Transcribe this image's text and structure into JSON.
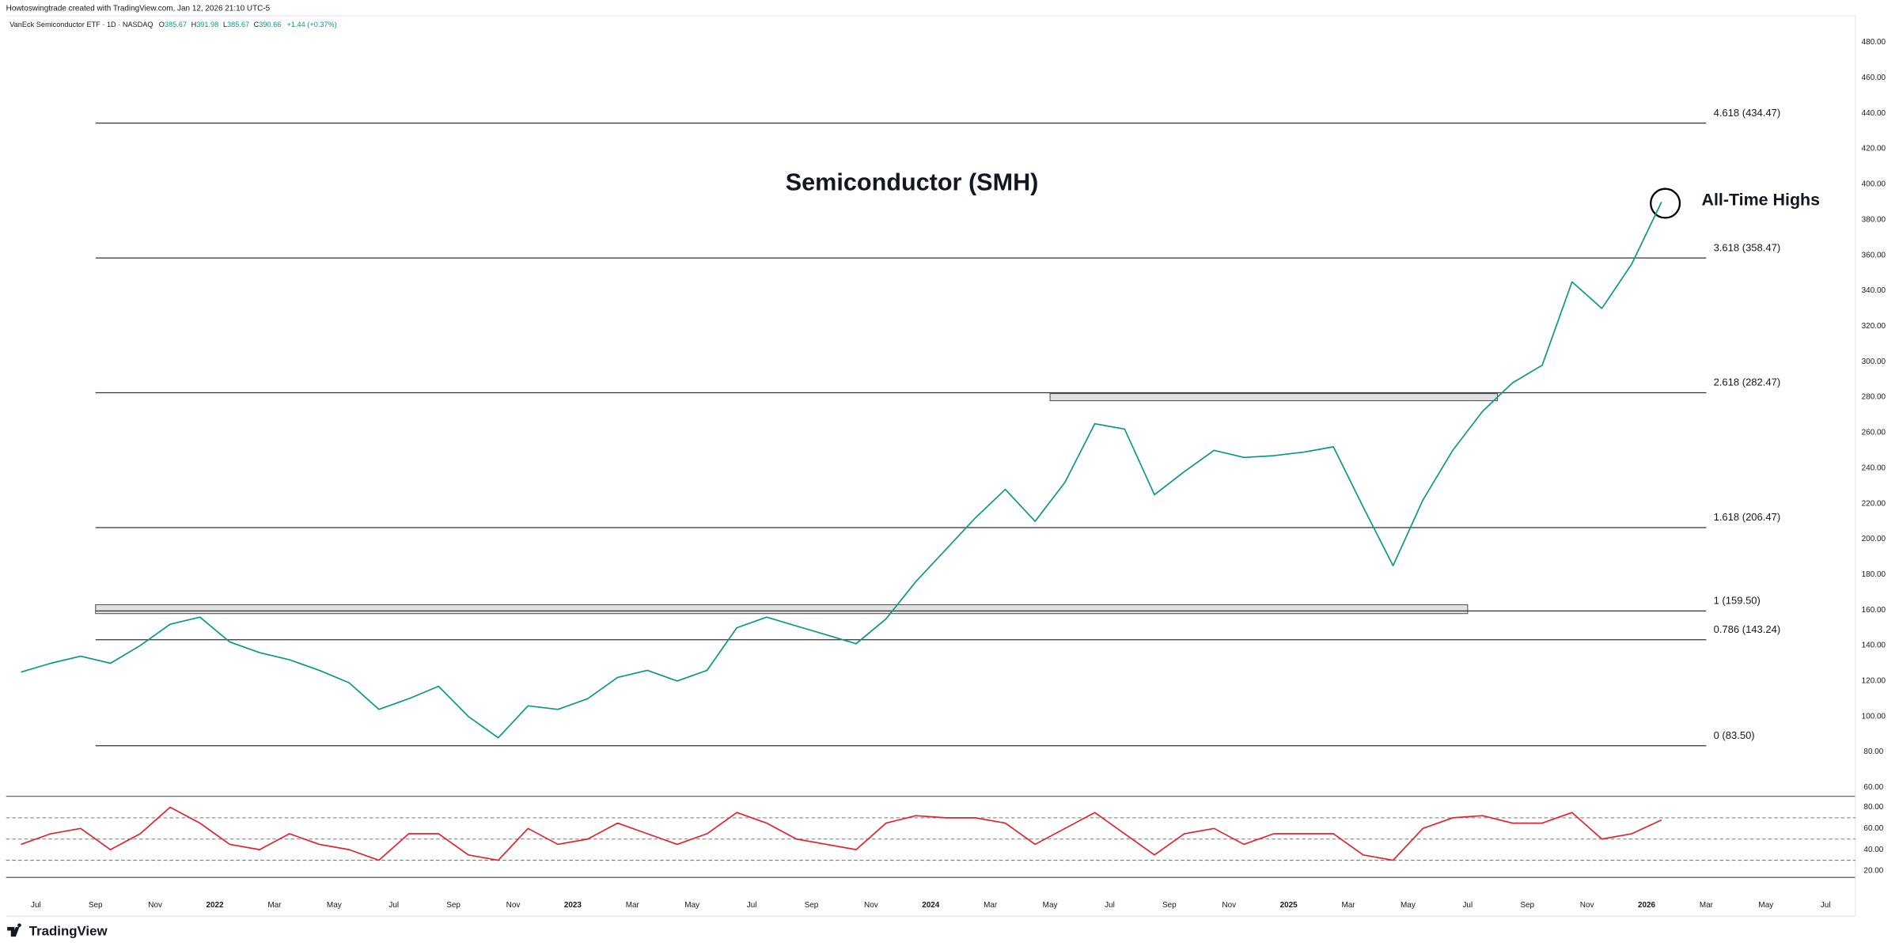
{
  "header": {
    "credit": "Howtoswingtrade created with TradingView.com, Jan 12, 2026 21:10 UTC-5",
    "branding": "TradingView"
  },
  "chart_data": [
    {
      "type": "line",
      "title": "Semiconductor (SMH)",
      "annotation": "All-Time Highs",
      "ohlc": [
        {
          "label": "O",
          "value": 385.67
        },
        {
          "label": "H",
          "value": 391.98
        },
        {
          "label": "L",
          "value": 385.67
        },
        {
          "label": "C",
          "value": 390.66
        }
      ],
      "change": "+1.44 (+0.37%)",
      "x": [
        "2021-06",
        "2021-07",
        "2021-08",
        "2021-09",
        "2021-10",
        "2021-11",
        "2021-12",
        "2022-01",
        "2022-02",
        "2022-03",
        "2022-04",
        "2022-05",
        "2022-06",
        "2022-07",
        "2022-08",
        "2022-09",
        "2022-10",
        "2022-11",
        "2022-12",
        "2023-01",
        "2023-02",
        "2023-03",
        "2023-04",
        "2023-05",
        "2023-06",
        "2023-07",
        "2023-08",
        "2023-09",
        "2023-10",
        "2023-11",
        "2023-12",
        "2024-01",
        "2024-02",
        "2024-03",
        "2024-04",
        "2024-05",
        "2024-06",
        "2024-07",
        "2024-08",
        "2024-09",
        "2024-10",
        "2024-11",
        "2024-12",
        "2025-01",
        "2025-02",
        "2025-03",
        "2025-04",
        "2025-05",
        "2025-06",
        "2025-07",
        "2025-08",
        "2025-09",
        "2025-10",
        "2025-11",
        "2025-12",
        "2026-01"
      ],
      "series": [
        {
          "name": "VanEck Semiconductor ETF · 1D · NASDAQ",
          "color": "#089981",
          "values": [
            125,
            130,
            134,
            130,
            140,
            152,
            156,
            142,
            136,
            132,
            126,
            119,
            104,
            110,
            117,
            100,
            88,
            106,
            104,
            110,
            122,
            126,
            120,
            126,
            150,
            156,
            151,
            146,
            141,
            155,
            176,
            194,
            212,
            228,
            210,
            232,
            265,
            262,
            225,
            238,
            250,
            246,
            247,
            249,
            252,
            218,
            185,
            222,
            250,
            272,
            288,
            298,
            345,
            330,
            355,
            390
          ]
        }
      ],
      "xlim": [
        "2021-06",
        "2026-08"
      ],
      "ylim": [
        55,
        495
      ],
      "yticks": [
        {
          "value": 60,
          "label": "60.00"
        },
        {
          "value": 80,
          "label": "80.00"
        },
        {
          "value": 100,
          "label": "100.00"
        },
        {
          "value": 120,
          "label": "120.00"
        },
        {
          "value": 140,
          "label": "140.00"
        },
        {
          "value": 160,
          "label": "160.00"
        },
        {
          "value": 180,
          "label": "180.00"
        },
        {
          "value": 200,
          "label": "200.00"
        },
        {
          "value": 220,
          "label": "220.00"
        },
        {
          "value": 240,
          "label": "240.00"
        },
        {
          "value": 260,
          "label": "260.00"
        },
        {
          "value": 280,
          "label": "280.00"
        },
        {
          "value": 300,
          "label": "300.00"
        },
        {
          "value": 320,
          "label": "320.00"
        },
        {
          "value": 340,
          "label": "340.00"
        },
        {
          "value": 360,
          "label": "360.00"
        },
        {
          "value": 380,
          "label": "380.00"
        },
        {
          "value": 400,
          "label": "400.00"
        },
        {
          "value": 420,
          "label": "420.00"
        },
        {
          "value": 440,
          "label": "440.00"
        },
        {
          "value": 460,
          "label": "460.00"
        },
        {
          "value": 480,
          "label": "480.00"
        }
      ],
      "grid": false,
      "fib": {
        "from": "2021-09",
        "to": "2026-03",
        "color": "#333333",
        "levels": [
          {
            "value": 434.47,
            "label": "4.618 (434.47)"
          },
          {
            "value": 358.47,
            "label": "3.618 (358.47)"
          },
          {
            "value": 282.47,
            "label": "2.618 (282.47)"
          },
          {
            "value": 206.47,
            "label": "1.618 (206.47)"
          },
          {
            "value": 159.5,
            "label": "1 (159.50)"
          },
          {
            "value": 143.24,
            "label": "0.786 (143.24)"
          },
          {
            "value": 83.5,
            "label": "0 (83.50)"
          }
        ]
      },
      "zones": [
        {
          "from": "2021-09",
          "to": "2025-07",
          "low": 158,
          "high": 163
        },
        {
          "from": "2024-05",
          "to": "2025-08",
          "low": 278,
          "high": 282
        }
      ]
    },
    {
      "type": "line",
      "x": [
        "2021-06",
        "2021-07",
        "2021-08",
        "2021-09",
        "2021-10",
        "2021-11",
        "2021-12",
        "2022-01",
        "2022-02",
        "2022-03",
        "2022-04",
        "2022-05",
        "2022-06",
        "2022-07",
        "2022-08",
        "2022-09",
        "2022-10",
        "2022-11",
        "2022-12",
        "2023-01",
        "2023-02",
        "2023-03",
        "2023-04",
        "2023-05",
        "2023-06",
        "2023-07",
        "2023-08",
        "2023-09",
        "2023-10",
        "2023-11",
        "2023-12",
        "2024-01",
        "2024-02",
        "2024-03",
        "2024-04",
        "2024-05",
        "2024-06",
        "2024-07",
        "2024-08",
        "2024-09",
        "2024-10",
        "2024-11",
        "2024-12",
        "2025-01",
        "2025-02",
        "2025-03",
        "2025-04",
        "2025-05",
        "2025-06",
        "2025-07",
        "2025-08",
        "2025-09",
        "2025-10",
        "2025-11",
        "2025-12",
        "2026-01"
      ],
      "series": [
        {
          "color": "#e0222b",
          "values": [
            45,
            55,
            60,
            40,
            55,
            80,
            65,
            45,
            40,
            55,
            45,
            40,
            30,
            55,
            55,
            35,
            30,
            60,
            45,
            50,
            65,
            55,
            45,
            55,
            75,
            65,
            50,
            45,
            40,
            65,
            72,
            70,
            70,
            65,
            45,
            60,
            75,
            55,
            35,
            55,
            60,
            45,
            55,
            55,
            55,
            35,
            30,
            60,
            70,
            72,
            65,
            65,
            75,
            50,
            55,
            68
          ]
        }
      ],
      "xlim": [
        "2021-06",
        "2026-08"
      ],
      "ylim": [
        15,
        88
      ],
      "yticks": [
        {
          "value": 20,
          "label": "20.00"
        },
        {
          "value": 40,
          "label": "40.00"
        },
        {
          "value": 60,
          "label": "60.00"
        },
        {
          "value": 80,
          "label": "80.00"
        }
      ],
      "levels": [
        70,
        50,
        30
      ],
      "xticks": [
        {
          "value": "2021-07",
          "label": "Jul"
        },
        {
          "value": "2021-09",
          "label": "Sep"
        },
        {
          "value": "2021-11",
          "label": "Nov"
        },
        {
          "value": "2022-01",
          "label": "2022"
        },
        {
          "value": "2022-03",
          "label": "Mar"
        },
        {
          "value": "2022-05",
          "label": "May"
        },
        {
          "value": "2022-07",
          "label": "Jul"
        },
        {
          "value": "2022-09",
          "label": "Sep"
        },
        {
          "value": "2022-11",
          "label": "Nov"
        },
        {
          "value": "2023-01",
          "label": "2023"
        },
        {
          "value": "2023-03",
          "label": "Mar"
        },
        {
          "value": "2023-05",
          "label": "May"
        },
        {
          "value": "2023-07",
          "label": "Jul"
        },
        {
          "value": "2023-09",
          "label": "Sep"
        },
        {
          "value": "2023-11",
          "label": "Nov"
        },
        {
          "value": "2024-01",
          "label": "2024"
        },
        {
          "value": "2024-03",
          "label": "Mar"
        },
        {
          "value": "2024-05",
          "label": "May"
        },
        {
          "value": "2024-07",
          "label": "Jul"
        },
        {
          "value": "2024-09",
          "label": "Sep"
        },
        {
          "value": "2024-11",
          "label": "Nov"
        },
        {
          "value": "2025-01",
          "label": "2025"
        },
        {
          "value": "2025-03",
          "label": "Mar"
        },
        {
          "value": "2025-05",
          "label": "May"
        },
        {
          "value": "2025-07",
          "label": "Jul"
        },
        {
          "value": "2025-09",
          "label": "Sep"
        },
        {
          "value": "2025-11",
          "label": "Nov"
        },
        {
          "value": "2026-01",
          "label": "2026"
        },
        {
          "value": "2026-03",
          "label": "Mar"
        },
        {
          "value": "2026-05",
          "label": "May"
        },
        {
          "value": "2026-07",
          "label": "Jul"
        }
      ]
    }
  ]
}
